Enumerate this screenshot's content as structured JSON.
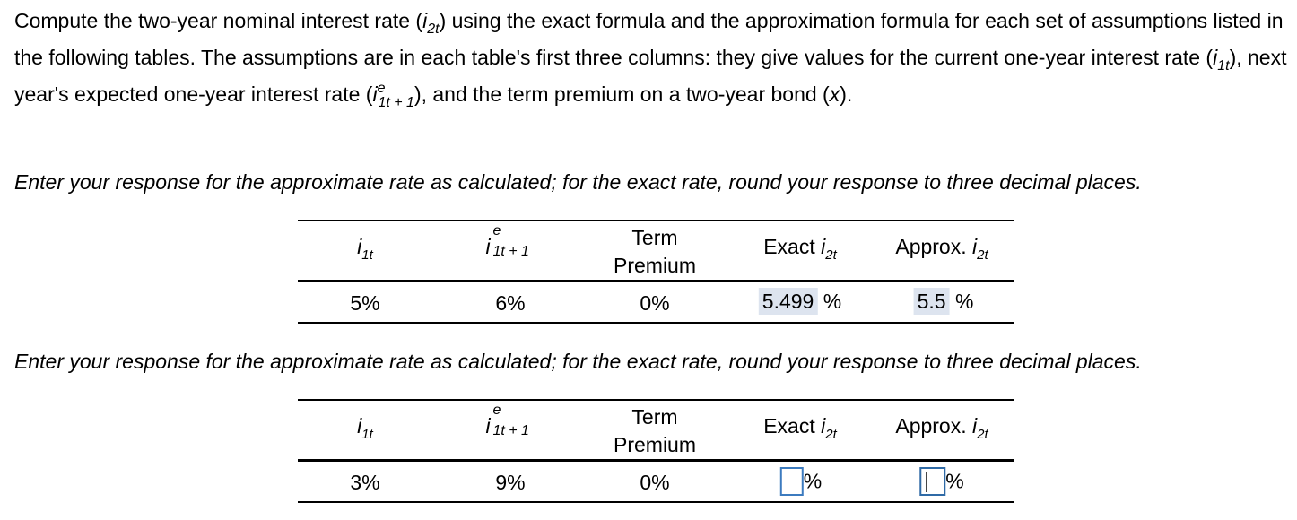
{
  "intro": {
    "p1": "Compute the two-year nominal interest rate (",
    "p2": ") using the exact formula and the approximation formula for each set of assumptions listed in the following tables. The assumptions are in each table's first three columns: they give values for the current one-year interest rate (",
    "p3": "), next year's expected one-year interest rate (",
    "p4": "), and the term premium on a two-year bond (",
    "p5": ")."
  },
  "sym": {
    "i": "i",
    "sub_2t": "2t",
    "sub_1t": "1t",
    "sup_e": "e",
    "sub_1t1": "1t + 1",
    "x": "x"
  },
  "instruction": "Enter your response for the approximate rate as calculated; for the exact rate, round your response to three decimal places.",
  "headers": {
    "term_line1": "Term",
    "term_line2": "Premium",
    "exact": "Exact ",
    "approx": "Approx. "
  },
  "table1": {
    "i1t": "5%",
    "ie": "6%",
    "term": "0%",
    "exact_value": "5.499",
    "approx_value": "5.5",
    "pct": "%"
  },
  "table2": {
    "i1t": "3%",
    "ie": "9%",
    "term": "0%",
    "exact_value": "",
    "approx_value": "",
    "pct": "%"
  }
}
